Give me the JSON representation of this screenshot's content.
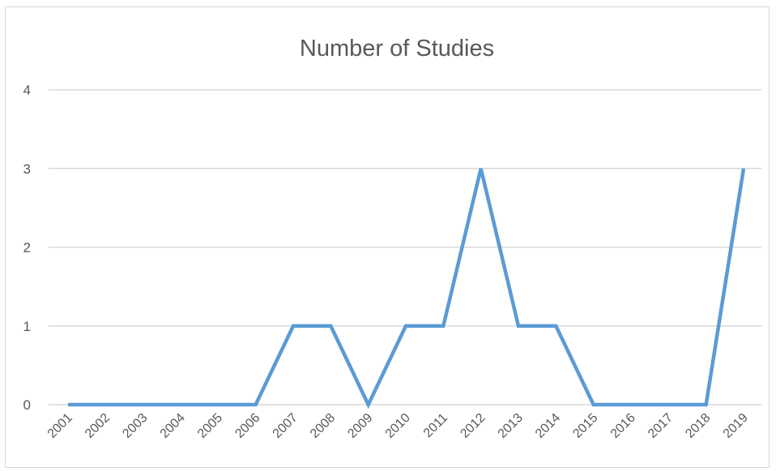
{
  "chart_data": {
    "type": "line",
    "title": "Number of Studies",
    "xlabel": "",
    "ylabel": "",
    "categories": [
      "2001",
      "2002",
      "2003",
      "2004",
      "2005",
      "2006",
      "2007",
      "2008",
      "2009",
      "2010",
      "2011",
      "2012",
      "2013",
      "2014",
      "2015",
      "2016",
      "2017",
      "2018",
      "2019"
    ],
    "y_ticks": [
      "0",
      "1",
      "2",
      "3",
      "4"
    ],
    "ylim": [
      0,
      4
    ],
    "series": [
      {
        "values": [
          0,
          0,
          0,
          0,
          0,
          0,
          1,
          1,
          0,
          1,
          1,
          3,
          1,
          1,
          0,
          0,
          0,
          0,
          3
        ],
        "color": "#5b9bd5"
      }
    ],
    "grid": "horizontal",
    "legend": "none",
    "x_tick_rotation": "-45"
  }
}
